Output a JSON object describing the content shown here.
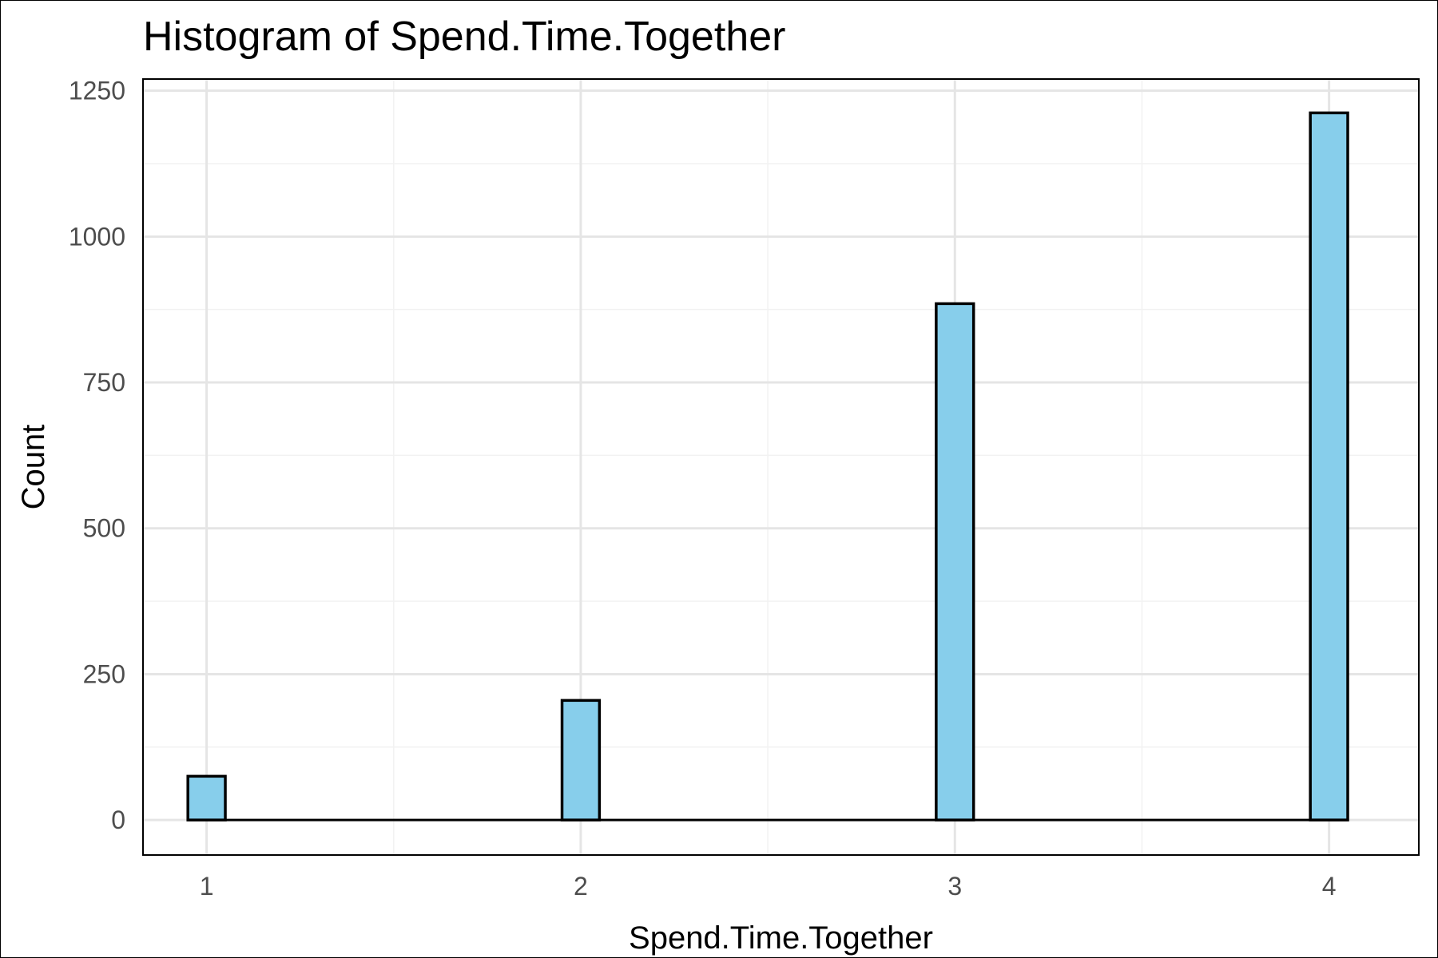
{
  "chart_data": {
    "type": "bar",
    "title": "Histogram of Spend.Time.Together",
    "xlabel": "Spend.Time.Together",
    "ylabel": "Count",
    "x_values": [
      1,
      2,
      3,
      4
    ],
    "values": [
      75,
      205,
      885,
      1212
    ],
    "bin_width": 0.1,
    "xlim": [
      0.83,
      4.24
    ],
    "ylim": [
      -60,
      1270
    ],
    "x_ticks": [
      1,
      2,
      3,
      4
    ],
    "y_ticks": [
      0,
      250,
      500,
      750,
      1000,
      1250
    ],
    "x_tick_labels": [
      "1",
      "2",
      "3",
      "4"
    ],
    "y_tick_labels": [
      "0",
      "250",
      "500",
      "750",
      "1000",
      "1250"
    ],
    "grid": true,
    "legend": "none",
    "bar_fill": "#87CEEB",
    "bar_stroke": "#000000",
    "grid_color": "#e5e5e5",
    "minor_grid_color": "#f2f2f2"
  }
}
